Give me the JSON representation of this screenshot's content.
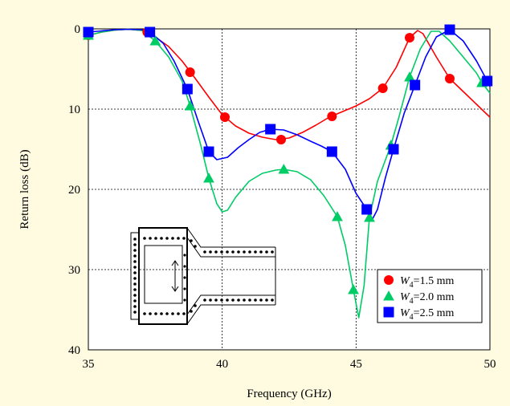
{
  "chart_data": {
    "type": "line",
    "title": "",
    "xlabel": "Frequency (GHz)",
    "ylabel": "Return loss (dB)",
    "xlim": [
      35,
      50
    ],
    "ylim": [
      0,
      40
    ],
    "y_inverted": true,
    "xticks": [
      "35",
      "40",
      "45",
      "50"
    ],
    "yticks": [
      "0",
      "10",
      "20",
      "30",
      "40"
    ],
    "grid": true,
    "legend_position": "bottom-right",
    "background": "#fefbe1",
    "plot_background": "#ffffff",
    "series": [
      {
        "name": "W4=1.5 mm",
        "label_italic": "W",
        "label_sub": "4",
        "label_rest": "=1.5 mm",
        "color": "#ff0000",
        "marker": "circle",
        "markers": [
          [
            35,
            0.8
          ],
          [
            37.2,
            0.4
          ],
          [
            38.8,
            5.4
          ],
          [
            40.1,
            11.0
          ],
          [
            42.2,
            13.8
          ],
          [
            44.1,
            10.9
          ],
          [
            46.0,
            7.4
          ],
          [
            47.0,
            1.1
          ],
          [
            48.5,
            6.2
          ]
        ],
        "curve": [
          [
            35,
            0.8
          ],
          [
            35.5,
            0.4
          ],
          [
            36.0,
            0.15
          ],
          [
            36.5,
            0.05
          ],
          [
            37.0,
            0.2
          ],
          [
            37.5,
            1.0
          ],
          [
            38.0,
            2.2
          ],
          [
            38.5,
            4.0
          ],
          [
            39.0,
            6.2
          ],
          [
            39.5,
            8.5
          ],
          [
            40.0,
            10.7
          ],
          [
            40.5,
            12.1
          ],
          [
            41.0,
            13.0
          ],
          [
            41.5,
            13.5
          ],
          [
            42.0,
            13.8
          ],
          [
            42.5,
            13.6
          ],
          [
            43.0,
            12.9
          ],
          [
            43.5,
            12.0
          ],
          [
            44.0,
            11.0
          ],
          [
            44.5,
            10.3
          ],
          [
            45.0,
            9.6
          ],
          [
            45.5,
            8.7
          ],
          [
            46.0,
            7.4
          ],
          [
            46.5,
            4.8
          ],
          [
            47.0,
            1.1
          ],
          [
            47.3,
            0.2
          ],
          [
            47.5,
            0.6
          ],
          [
            48.0,
            3.5
          ],
          [
            48.5,
            6.2
          ],
          [
            49.0,
            7.8
          ],
          [
            49.5,
            9.4
          ],
          [
            50.0,
            11.0
          ]
        ]
      },
      {
        "name": "W4=2.0 mm",
        "label_italic": "W",
        "label_sub": "4",
        "label_rest": "=2.0 mm",
        "color": "#00cc66",
        "marker": "triangle",
        "markers": [
          [
            35,
            0.8
          ],
          [
            37.5,
            1.5
          ],
          [
            38.8,
            9.6
          ],
          [
            39.5,
            18.6
          ],
          [
            42.3,
            17.5
          ],
          [
            44.3,
            23.4
          ],
          [
            44.9,
            32.5
          ],
          [
            45.5,
            23.5
          ],
          [
            46.3,
            14.5
          ],
          [
            47.0,
            6.0
          ],
          [
            49.7,
            6.7
          ]
        ],
        "curve": [
          [
            35,
            0.8
          ],
          [
            35.5,
            0.4
          ],
          [
            36.0,
            0.15
          ],
          [
            36.5,
            0.05
          ],
          [
            37.0,
            0.2
          ],
          [
            37.5,
            1.5
          ],
          [
            38.0,
            3.5
          ],
          [
            38.5,
            6.5
          ],
          [
            38.8,
            9.6
          ],
          [
            39.2,
            14.5
          ],
          [
            39.5,
            18.6
          ],
          [
            39.8,
            21.8
          ],
          [
            40.0,
            22.8
          ],
          [
            40.2,
            22.6
          ],
          [
            40.5,
            21.0
          ],
          [
            41.0,
            19.0
          ],
          [
            41.5,
            18.0
          ],
          [
            42.0,
            17.6
          ],
          [
            42.3,
            17.5
          ],
          [
            42.8,
            17.8
          ],
          [
            43.3,
            18.8
          ],
          [
            43.8,
            20.8
          ],
          [
            44.3,
            23.4
          ],
          [
            44.6,
            27.0
          ],
          [
            44.9,
            32.5
          ],
          [
            45.1,
            36.0
          ],
          [
            45.3,
            32.0
          ],
          [
            45.5,
            23.5
          ],
          [
            45.8,
            19.0
          ],
          [
            46.3,
            14.5
          ],
          [
            46.6,
            11.0
          ],
          [
            47.0,
            6.0
          ],
          [
            47.4,
            2.5
          ],
          [
            47.8,
            0.3
          ],
          [
            48.1,
            0.3
          ],
          [
            48.5,
            1.5
          ],
          [
            49.0,
            3.5
          ],
          [
            49.5,
            5.5
          ],
          [
            49.7,
            6.7
          ],
          [
            50.0,
            8.0
          ]
        ]
      },
      {
        "name": "W4=2.5 mm",
        "label_italic": "W",
        "label_sub": "4",
        "label_rest": "=2.5 mm",
        "color": "#0000ff",
        "marker": "square",
        "markers": [
          [
            35,
            0.4
          ],
          [
            37.3,
            0.4
          ],
          [
            38.7,
            7.5
          ],
          [
            39.5,
            15.3
          ],
          [
            41.8,
            12.5
          ],
          [
            44.1,
            15.3
          ],
          [
            45.4,
            22.5
          ],
          [
            46.4,
            15.0
          ],
          [
            47.2,
            7.0
          ],
          [
            48.5,
            0.1
          ],
          [
            49.9,
            6.5
          ]
        ],
        "curve": [
          [
            35,
            0.4
          ],
          [
            35.5,
            0.25
          ],
          [
            36.0,
            0.1
          ],
          [
            36.5,
            0.05
          ],
          [
            37.0,
            0.1
          ],
          [
            37.3,
            0.4
          ],
          [
            37.8,
            1.8
          ],
          [
            38.2,
            4.0
          ],
          [
            38.7,
            7.5
          ],
          [
            39.1,
            11.5
          ],
          [
            39.5,
            15.3
          ],
          [
            39.8,
            16.3
          ],
          [
            40.2,
            16.0
          ],
          [
            40.6,
            14.8
          ],
          [
            41.0,
            13.8
          ],
          [
            41.4,
            12.9
          ],
          [
            41.8,
            12.5
          ],
          [
            42.3,
            12.6
          ],
          [
            42.8,
            13.2
          ],
          [
            43.3,
            14.0
          ],
          [
            43.7,
            14.6
          ],
          [
            44.1,
            15.3
          ],
          [
            44.6,
            17.5
          ],
          [
            45.0,
            20.5
          ],
          [
            45.4,
            22.5
          ],
          [
            45.6,
            23.8
          ],
          [
            45.8,
            22.5
          ],
          [
            46.1,
            18.5
          ],
          [
            46.4,
            15.0
          ],
          [
            46.8,
            10.5
          ],
          [
            47.2,
            7.0
          ],
          [
            47.6,
            3.5
          ],
          [
            48.0,
            1.0
          ],
          [
            48.5,
            0.1
          ],
          [
            49.0,
            1.5
          ],
          [
            49.5,
            4.0
          ],
          [
            49.9,
            6.5
          ],
          [
            50.0,
            7.2
          ]
        ]
      }
    ]
  }
}
